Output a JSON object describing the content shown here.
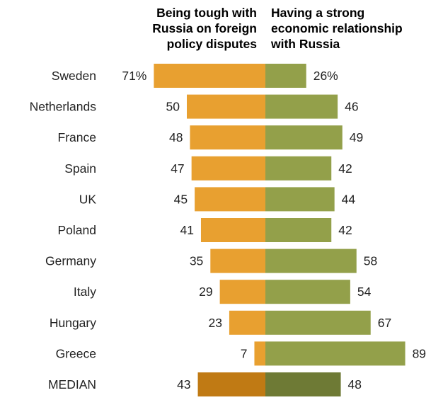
{
  "chart_data": {
    "type": "bar",
    "orientation": "horizontal-diverging",
    "series": [
      {
        "name": "Being tough with Russia on foreign policy disputes",
        "header_lines": [
          "Being tough with",
          "Russia on foreign",
          "policy disputes"
        ],
        "color": "#E8A030",
        "median_color": "#C07A14",
        "values": [
          71,
          50,
          48,
          47,
          45,
          41,
          35,
          29,
          23,
          7,
          43
        ],
        "labels": [
          "71%",
          "50",
          "48",
          "47",
          "45",
          "41",
          "35",
          "29",
          "23",
          "7",
          "43"
        ]
      },
      {
        "name": "Having a strong economic relationship with Russia",
        "header_lines": [
          "Having a strong",
          "economic relationship",
          "with Russia"
        ],
        "color": "#93A04A",
        "median_color": "#6E7A35",
        "values": [
          26,
          46,
          49,
          42,
          44,
          42,
          58,
          54,
          67,
          89,
          48
        ],
        "labels": [
          "26%",
          "46",
          "49",
          "42",
          "44",
          "42",
          "58",
          "54",
          "67",
          "89",
          "48"
        ]
      }
    ],
    "categories": [
      "Sweden",
      "Netherlands",
      "France",
      "Spain",
      "UK",
      "Poland",
      "Germany",
      "Italy",
      "Hungary",
      "Greece",
      "MEDIAN"
    ]
  }
}
